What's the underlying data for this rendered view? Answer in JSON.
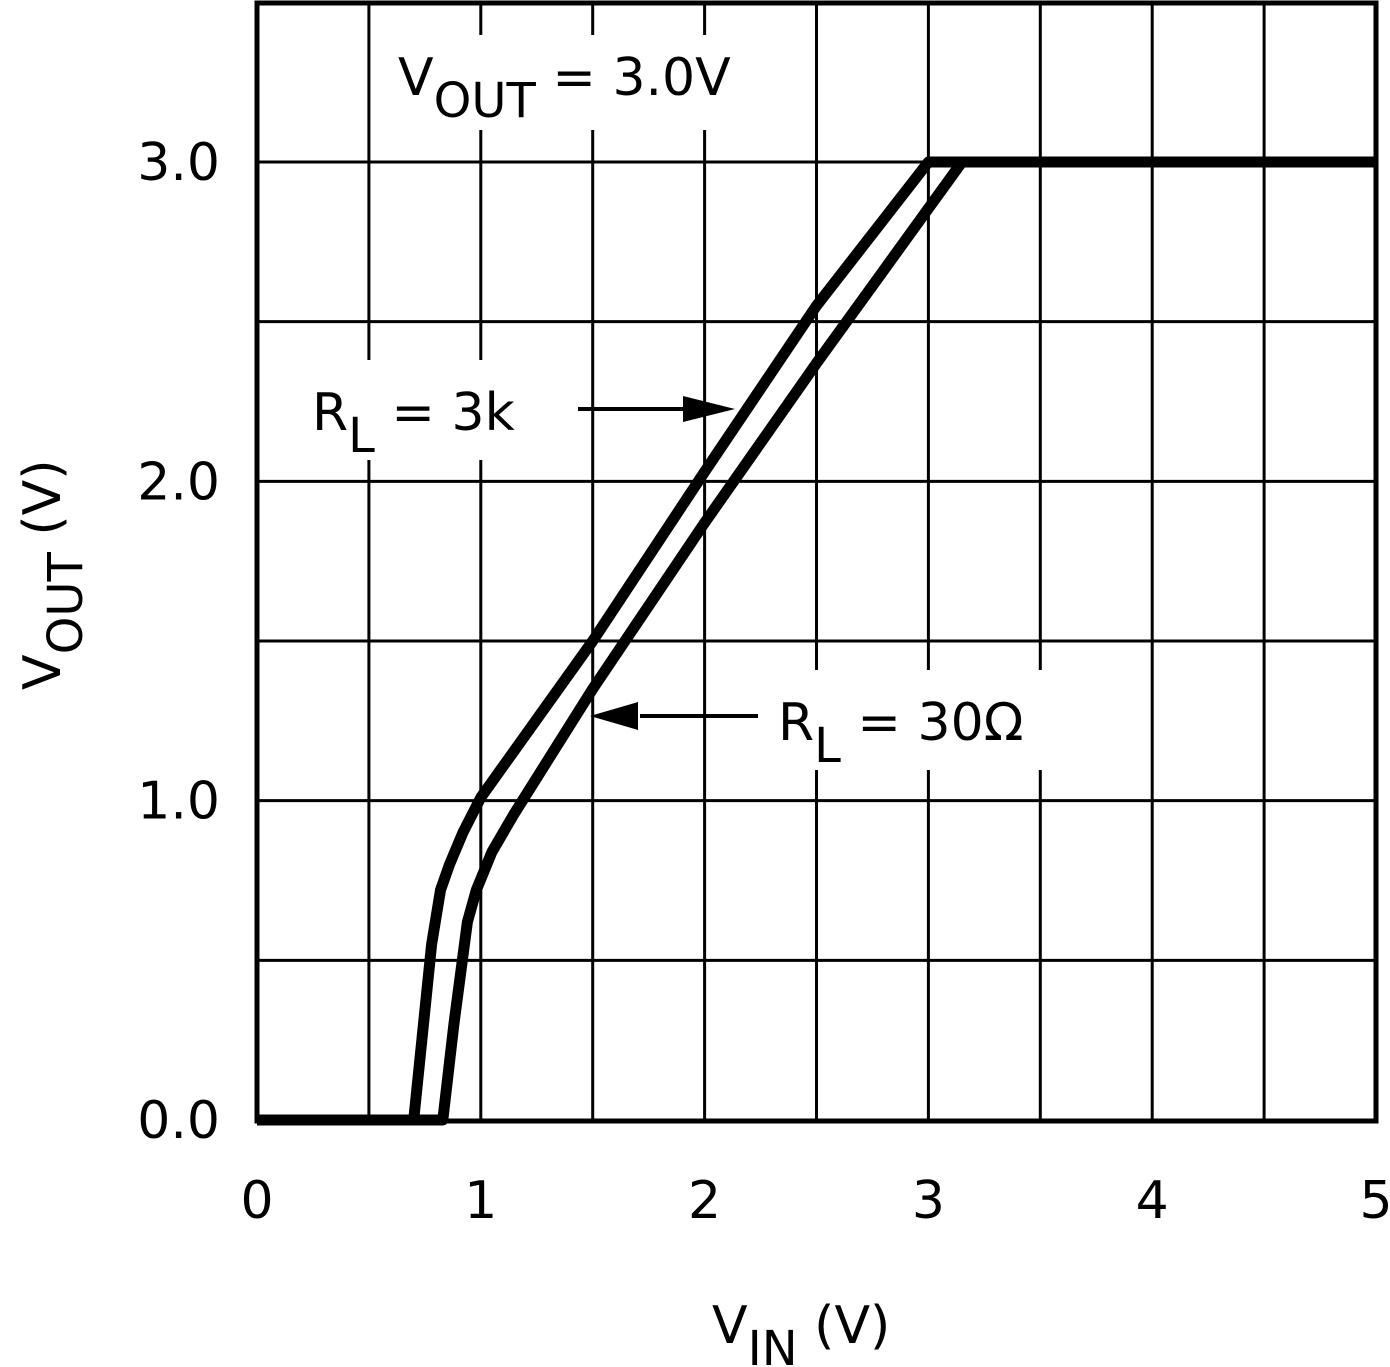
{
  "chart_data": {
    "type": "line",
    "title": "",
    "annotation_condition": {
      "main": "V",
      "sub": "OUT",
      "rest": " = 3.0V"
    },
    "xlabel": {
      "main": "V",
      "sub": "IN",
      "rest": " (V)"
    },
    "ylabel": {
      "main": "V",
      "sub": "OUT",
      "rest": " (V)"
    },
    "xlim": [
      0,
      5
    ],
    "ylim": [
      0,
      3.5
    ],
    "x_ticks": [
      0,
      1,
      2,
      3,
      4,
      5
    ],
    "x_tick_labels": [
      "0",
      "1",
      "2",
      "3",
      "4",
      "5"
    ],
    "y_ticks": [
      0,
      1,
      2,
      3
    ],
    "y_tick_labels": [
      "0.0",
      "1.0",
      "2.0",
      "3.0"
    ],
    "grid": {
      "x_step": 0.5,
      "y_step": 0.5,
      "on": true
    },
    "series": [
      {
        "name": "RL = 3k",
        "label": {
          "main": "R",
          "sub": "L",
          "rest": " = 3k"
        },
        "x": [
          0,
          0.7,
          0.78,
          0.82,
          0.86,
          0.92,
          1.0,
          1.5,
          2.0,
          2.5,
          3.0,
          5.0
        ],
        "y": [
          0,
          0,
          0.55,
          0.72,
          0.8,
          0.9,
          1.01,
          1.5,
          2.03,
          2.55,
          3.0,
          3.0
        ]
      },
      {
        "name": "RL = 30Ω",
        "label": {
          "main": "R",
          "sub": "L",
          "rest": " = 30Ω"
        },
        "x": [
          0,
          0.83,
          0.88,
          0.94,
          0.98,
          1.05,
          1.15,
          1.5,
          2.0,
          2.5,
          3.15,
          5.0
        ],
        "y": [
          0,
          0,
          0.3,
          0.62,
          0.72,
          0.84,
          0.96,
          1.35,
          1.87,
          2.37,
          3.0,
          3.0
        ]
      }
    ]
  }
}
